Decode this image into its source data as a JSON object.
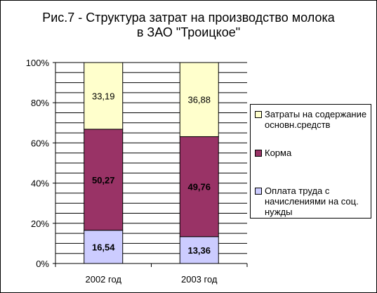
{
  "title": "Рис.7 - Структура затрат на производство молока\nв ЗАО \"Троицкое\"",
  "chart_data": {
    "type": "bar",
    "stacked": true,
    "categories": [
      "2002 год",
      "2003 год"
    ],
    "series": [
      {
        "name": "Оплата труда с начислениями на соц. нужды",
        "values": [
          16.54,
          13.36
        ],
        "color": "#ccccff"
      },
      {
        "name": "Корма",
        "values": [
          50.27,
          49.76
        ],
        "color": "#993366"
      },
      {
        "name": "Затраты на содержание основн.средств",
        "values": [
          33.19,
          36.88
        ],
        "color": "#ffffcc"
      }
    ],
    "ylim": [
      0,
      100
    ],
    "yticks": [
      "0%",
      "20%",
      "40%",
      "60%",
      "80%",
      "100%"
    ],
    "grid": true,
    "legend_position": "right"
  },
  "legend": [
    {
      "label": "Затраты на содержание основн.средств",
      "color": "#ffffcc"
    },
    {
      "label": "Корма",
      "color": "#993366"
    },
    {
      "label": "Оплата труда с начислениями на соц. нужды",
      "color": "#ccccff"
    }
  ]
}
